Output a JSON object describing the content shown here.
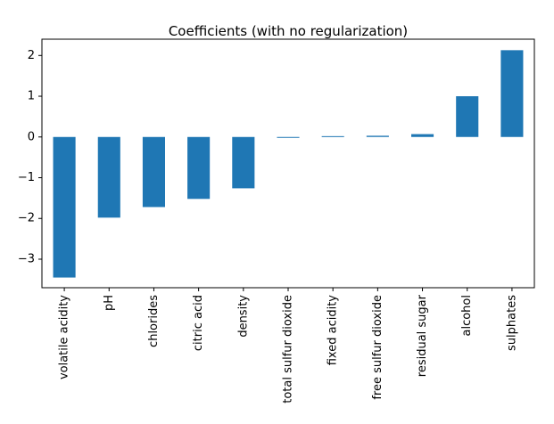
{
  "chart_data": {
    "type": "bar",
    "title": "Coefficients (with no regularization)",
    "xlabel": "",
    "ylabel": "",
    "categories": [
      "volatile acidity",
      "pH",
      "chlorides",
      "citric acid",
      "density",
      "total sulfur dioxide",
      "fixed acidity",
      "free sulfur dioxide",
      "residual sugar",
      "alcohol",
      "sulphates"
    ],
    "values": [
      -3.45,
      -1.98,
      -1.72,
      -1.52,
      -1.26,
      -0.02,
      0.02,
      0.03,
      0.07,
      1.0,
      2.13
    ],
    "ylim": [
      -3.7,
      2.4
    ],
    "yticks": [
      -3,
      -2,
      -1,
      0,
      1,
      2
    ],
    "ytick_labels": [
      "−3",
      "−2",
      "−1",
      "0",
      "1",
      "2"
    ],
    "grid": false,
    "bar_color": "#1f77b4"
  }
}
